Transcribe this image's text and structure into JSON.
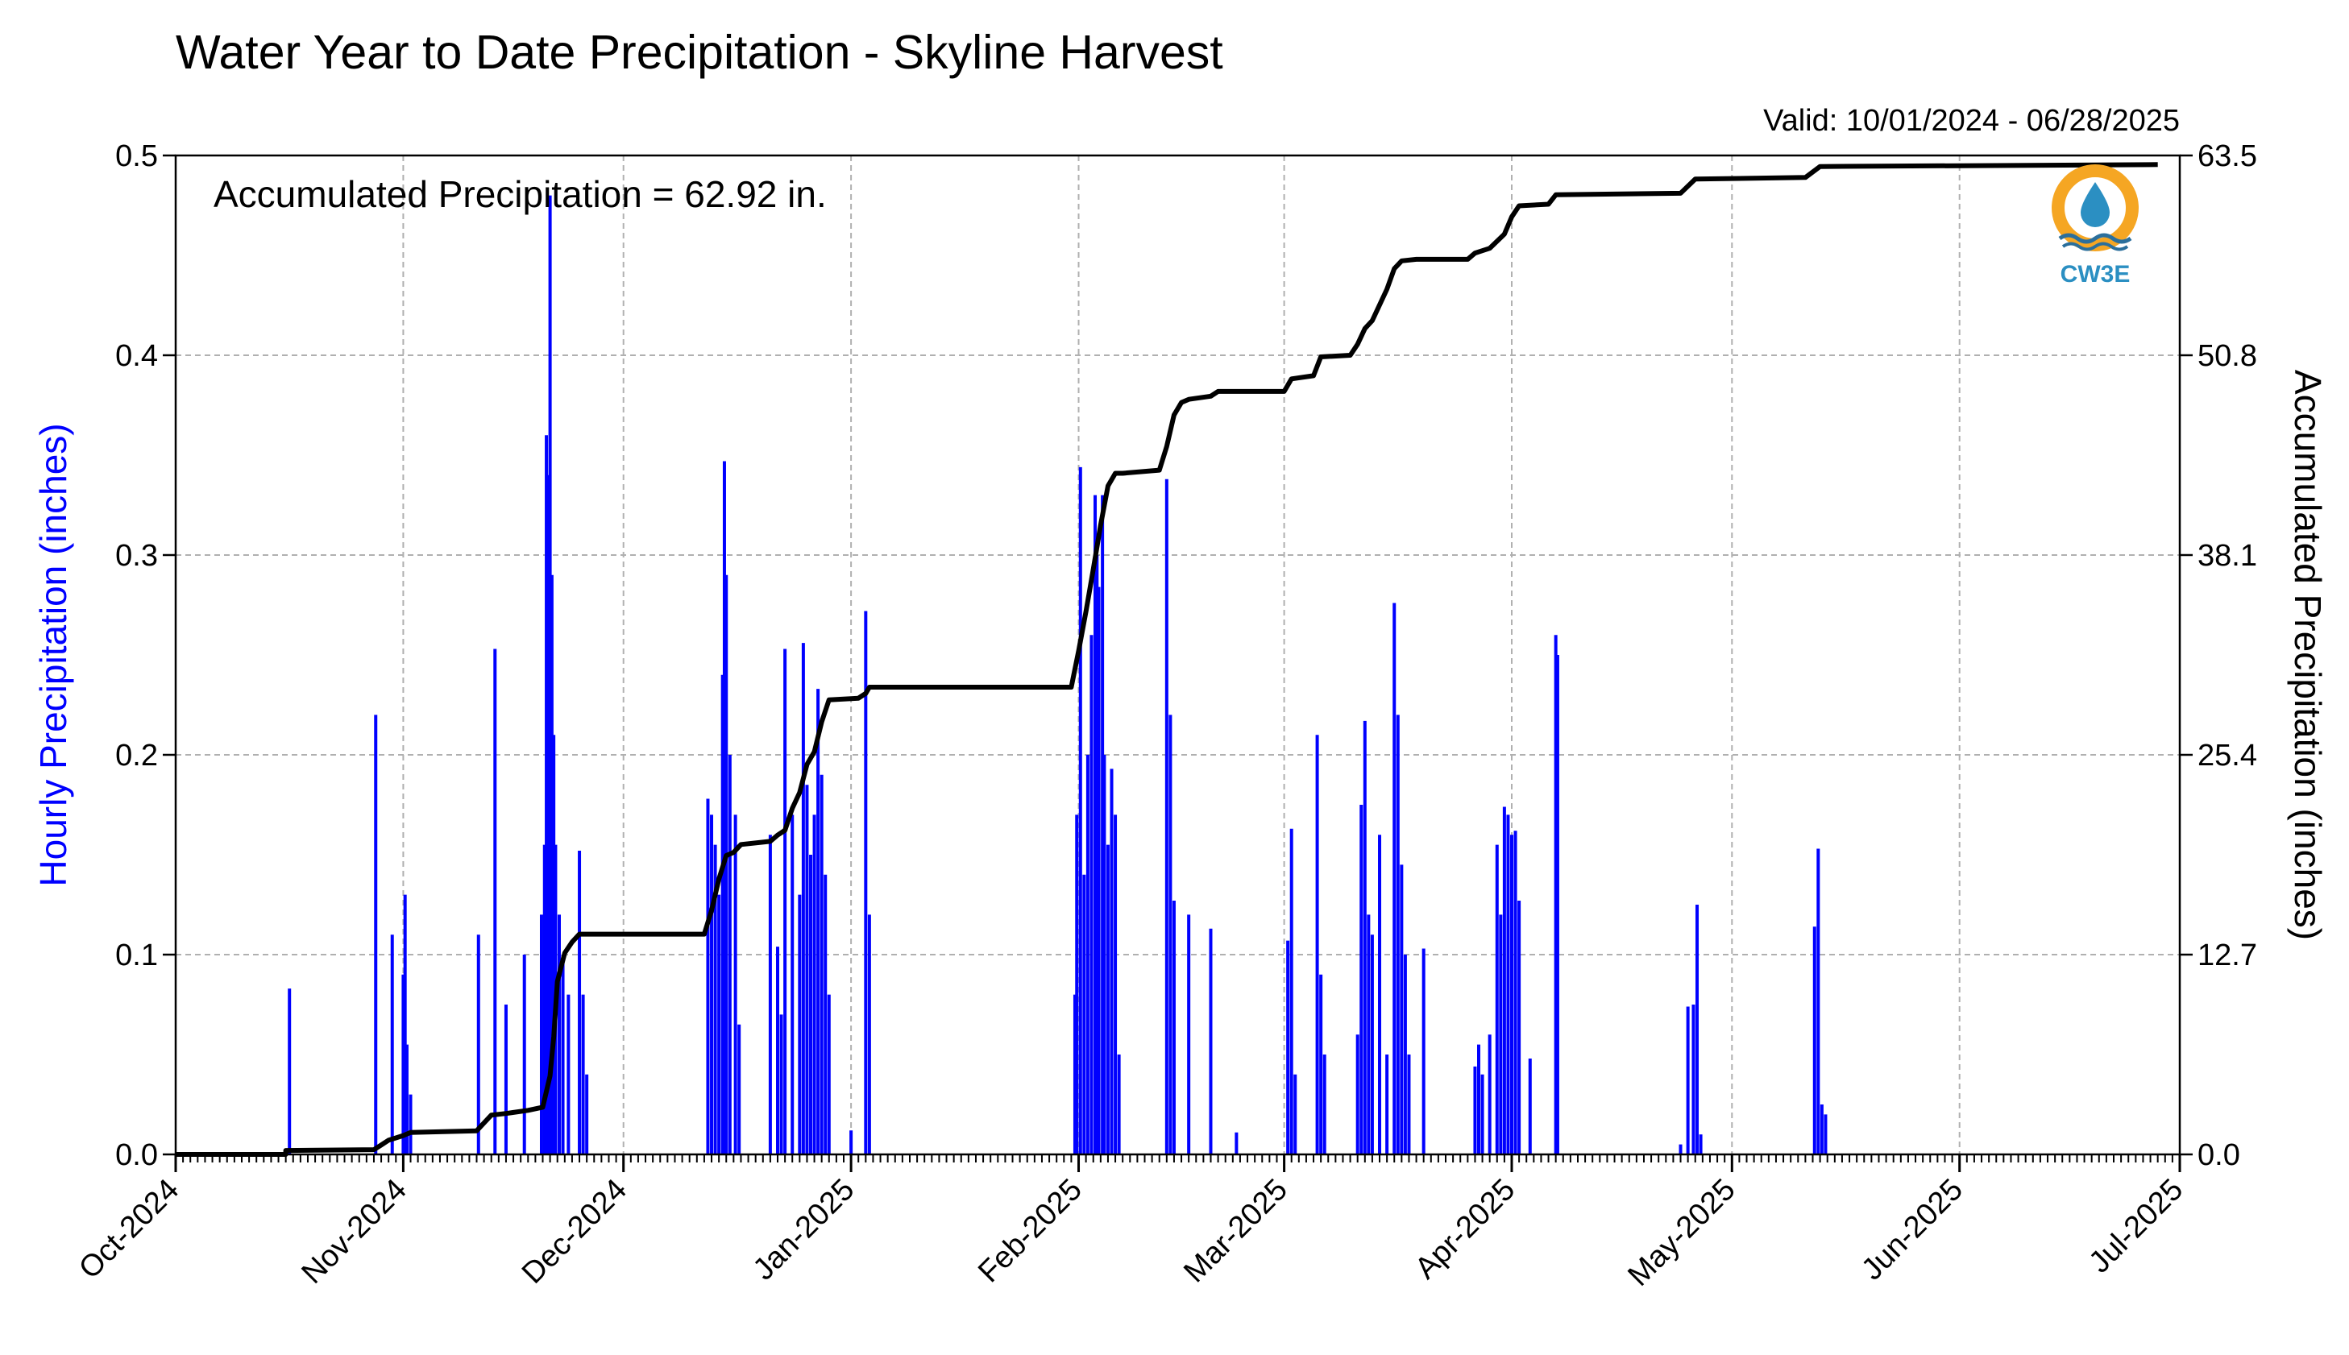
{
  "chart_data": {
    "type": "bar",
    "title": "Water Year to Date Precipitation - Skyline Harvest",
    "valid_text": "Valid: 10/01/2024 - 06/28/2025",
    "annotation": "Accumulated Precipitation = 62.92 in.",
    "ylabel": "Hourly Precipitation (inches)",
    "y2label": "Accumulated Precipitation (inches)",
    "xlim": [
      "2024-10-01",
      "2025-07-01"
    ],
    "ylim": [
      0,
      0.5
    ],
    "y2lim": [
      0,
      63.5
    ],
    "y_ticks": [
      "0.0",
      "0.1",
      "0.2",
      "0.3",
      "0.4",
      "0.5"
    ],
    "y2_ticks": [
      "0.0",
      "12.7",
      "25.4",
      "38.1",
      "50.8",
      "63.5"
    ],
    "x_ticks": [
      {
        "date": "2024-10-01",
        "label": "Oct-2024"
      },
      {
        "date": "2024-11-01",
        "label": "Nov-2024"
      },
      {
        "date": "2024-12-01",
        "label": "Dec-2024"
      },
      {
        "date": "2025-01-01",
        "label": "Jan-2025"
      },
      {
        "date": "2025-02-01",
        "label": "Feb-2025"
      },
      {
        "date": "2025-03-01",
        "label": "Mar-2025"
      },
      {
        "date": "2025-04-01",
        "label": "Apr-2025"
      },
      {
        "date": "2025-05-01",
        "label": "May-2025"
      },
      {
        "date": "2025-06-01",
        "label": "Jun-2025"
      },
      {
        "date": "2025-07-01",
        "label": "Jul-2025"
      }
    ],
    "grid": true,
    "series": [
      {
        "name": "Hourly Precipitation (inches)",
        "axis": "left",
        "color": "#0000ff",
        "points": [
          [
            "2024-10-16T12",
            0.083
          ],
          [
            "2024-10-28T06",
            0.22
          ],
          [
            "2024-10-30T12",
            0.11
          ],
          [
            "2024-11-01T00",
            0.09
          ],
          [
            "2024-11-01T06",
            0.13
          ],
          [
            "2024-11-01T12",
            0.055
          ],
          [
            "2024-11-02T00",
            0.03
          ],
          [
            "2024-11-11T06",
            0.11
          ],
          [
            "2024-11-13T12",
            0.253
          ],
          [
            "2024-11-15T00",
            0.075
          ],
          [
            "2024-11-17T12",
            0.1
          ],
          [
            "2024-11-19T20",
            0.12
          ],
          [
            "2024-11-20T06",
            0.155
          ],
          [
            "2024-11-20T12",
            0.36
          ],
          [
            "2024-11-20T18",
            0.34
          ],
          [
            "2024-11-21T00",
            0.48
          ],
          [
            "2024-11-21T06",
            0.29
          ],
          [
            "2024-11-21T12",
            0.21
          ],
          [
            "2024-11-21T18",
            0.155
          ],
          [
            "2024-11-22T06",
            0.12
          ],
          [
            "2024-11-22T18",
            0.1
          ],
          [
            "2024-11-23T12",
            0.08
          ],
          [
            "2024-11-25T00",
            0.152
          ],
          [
            "2024-11-25T12",
            0.08
          ],
          [
            "2024-11-26T00",
            0.04
          ],
          [
            "2024-12-12T12",
            0.178
          ],
          [
            "2024-12-13T00",
            0.17
          ],
          [
            "2024-12-13T12",
            0.155
          ],
          [
            "2024-12-14T00",
            0.13
          ],
          [
            "2024-12-14T12",
            0.24
          ],
          [
            "2024-12-14T18",
            0.347
          ],
          [
            "2024-12-15T00",
            0.29
          ],
          [
            "2024-12-15T12",
            0.2
          ],
          [
            "2024-12-16T06",
            0.17
          ],
          [
            "2024-12-16T18",
            0.065
          ],
          [
            "2024-12-21T00",
            0.16
          ],
          [
            "2024-12-22T00",
            0.104
          ],
          [
            "2024-12-22T12",
            0.07
          ],
          [
            "2024-12-23T00",
            0.253
          ],
          [
            "2024-12-24T00",
            0.17
          ],
          [
            "2024-12-25T00",
            0.13
          ],
          [
            "2024-12-25T12",
            0.256
          ],
          [
            "2024-12-26T00",
            0.185
          ],
          [
            "2024-12-26T12",
            0.15
          ],
          [
            "2024-12-27T00",
            0.17
          ],
          [
            "2024-12-27T12",
            0.233
          ],
          [
            "2024-12-28T00",
            0.19
          ],
          [
            "2024-12-28T12",
            0.14
          ],
          [
            "2024-12-29T00",
            0.08
          ],
          [
            "2025-01-01T00",
            0.012
          ],
          [
            "2025-01-03T00",
            0.272
          ],
          [
            "2025-01-03T12",
            0.12
          ],
          [
            "2025-01-31T12",
            0.08
          ],
          [
            "2025-01-31T18",
            0.17
          ],
          [
            "2025-02-01T06",
            0.344
          ],
          [
            "2025-02-01T18",
            0.14
          ],
          [
            "2025-02-02T06",
            0.2
          ],
          [
            "2025-02-02T18",
            0.26
          ],
          [
            "2025-02-03T06",
            0.33
          ],
          [
            "2025-02-03T12",
            0.3
          ],
          [
            "2025-02-03T18",
            0.284
          ],
          [
            "2025-02-04T06",
            0.33
          ],
          [
            "2025-02-04T12",
            0.2
          ],
          [
            "2025-02-05T00",
            0.155
          ],
          [
            "2025-02-05T12",
            0.193
          ],
          [
            "2025-02-06T00",
            0.17
          ],
          [
            "2025-02-06T12",
            0.05
          ],
          [
            "2025-02-13T00",
            0.338
          ],
          [
            "2025-02-13T12",
            0.22
          ],
          [
            "2025-02-14T00",
            0.127
          ],
          [
            "2025-02-16T00",
            0.12
          ],
          [
            "2025-02-19T00",
            0.113
          ],
          [
            "2025-02-22T12",
            0.011
          ],
          [
            "2025-03-01T12",
            0.107
          ],
          [
            "2025-03-02T00",
            0.163
          ],
          [
            "2025-03-02T12",
            0.04
          ],
          [
            "2025-03-05T12",
            0.21
          ],
          [
            "2025-03-06T00",
            0.09
          ],
          [
            "2025-03-06T12",
            0.05
          ],
          [
            "2025-03-11T00",
            0.06
          ],
          [
            "2025-03-11T12",
            0.175
          ],
          [
            "2025-03-12T00",
            0.217
          ],
          [
            "2025-03-12T12",
            0.12
          ],
          [
            "2025-03-13T00",
            0.11
          ],
          [
            "2025-03-14T00",
            0.16
          ],
          [
            "2025-03-15T00",
            0.05
          ],
          [
            "2025-03-16T00",
            0.276
          ],
          [
            "2025-03-16T12",
            0.22
          ],
          [
            "2025-03-17T00",
            0.145
          ],
          [
            "2025-03-17T12",
            0.1
          ],
          [
            "2025-03-18T00",
            0.05
          ],
          [
            "2025-03-20T00",
            0.103
          ],
          [
            "2025-03-27T00",
            0.044
          ],
          [
            "2025-03-27T12",
            0.055
          ],
          [
            "2025-03-28T00",
            0.04
          ],
          [
            "2025-03-29T00",
            0.06
          ],
          [
            "2025-03-30T00",
            0.155
          ],
          [
            "2025-03-30T12",
            0.12
          ],
          [
            "2025-03-31T00",
            0.174
          ],
          [
            "2025-03-31T12",
            0.17
          ],
          [
            "2025-04-01T00",
            0.16
          ],
          [
            "2025-04-01T12",
            0.162
          ],
          [
            "2025-04-02T00",
            0.127
          ],
          [
            "2025-04-03T12",
            0.048
          ],
          [
            "2025-04-07T00",
            0.26
          ],
          [
            "2025-04-07T06",
            0.25
          ],
          [
            "2025-04-24T00",
            0.005
          ],
          [
            "2025-04-25T00",
            0.074
          ],
          [
            "2025-04-25T18",
            0.075
          ],
          [
            "2025-04-26T06",
            0.125
          ],
          [
            "2025-04-26T18",
            0.01
          ],
          [
            "2025-05-12T06",
            0.114
          ],
          [
            "2025-05-12T18",
            0.153
          ],
          [
            "2025-05-13T06",
            0.025
          ],
          [
            "2025-05-13T18",
            0.02
          ]
        ]
      },
      {
        "name": "Accumulated Precipitation (inches)",
        "axis": "right",
        "color": "#000000",
        "points": [
          [
            "2024-10-01",
            0.0
          ],
          [
            "2024-10-16",
            0.0
          ],
          [
            "2024-10-16",
            0.25
          ],
          [
            "2024-10-28",
            0.3
          ],
          [
            "2024-10-29",
            0.6
          ],
          [
            "2024-10-30",
            0.9
          ],
          [
            "2024-11-01",
            1.2
          ],
          [
            "2024-11-02",
            1.4
          ],
          [
            "2024-11-11",
            1.5
          ],
          [
            "2024-11-13",
            2.5
          ],
          [
            "2024-11-15",
            2.6
          ],
          [
            "2024-11-18",
            2.8
          ],
          [
            "2024-11-20",
            3.0
          ],
          [
            "2024-11-21",
            5.0
          ],
          [
            "2024-11-21T12",
            7.5
          ],
          [
            "2024-11-22",
            11.0
          ],
          [
            "2024-11-23",
            12.8
          ],
          [
            "2024-11-24",
            13.5
          ],
          [
            "2024-11-25",
            14.0
          ],
          [
            "2024-11-26",
            14.0
          ],
          [
            "2024-12-12",
            14.0
          ],
          [
            "2024-12-13",
            15.5
          ],
          [
            "2024-12-14",
            17.5
          ],
          [
            "2024-12-15",
            19.0
          ],
          [
            "2024-12-16",
            19.2
          ],
          [
            "2024-12-17",
            19.7
          ],
          [
            "2024-12-21",
            19.9
          ],
          [
            "2024-12-22",
            20.3
          ],
          [
            "2024-12-23",
            20.6
          ],
          [
            "2024-12-24",
            22.0
          ],
          [
            "2024-12-25",
            23.0
          ],
          [
            "2024-12-26",
            24.8
          ],
          [
            "2024-12-27",
            25.6
          ],
          [
            "2024-12-28",
            27.5
          ],
          [
            "2024-12-29",
            28.9
          ],
          [
            "2025-01-02",
            29.0
          ],
          [
            "2025-01-03",
            29.3
          ],
          [
            "2025-01-03T12",
            29.7
          ],
          [
            "2025-01-31",
            29.7
          ],
          [
            "2025-02-01",
            32.0
          ],
          [
            "2025-02-02",
            34.5
          ],
          [
            "2025-02-03",
            37.2
          ],
          [
            "2025-02-04",
            40.0
          ],
          [
            "2025-02-05",
            42.5
          ],
          [
            "2025-02-06",
            43.3
          ],
          [
            "2025-02-07",
            43.3
          ],
          [
            "2025-02-12",
            43.5
          ],
          [
            "2025-02-13",
            45.0
          ],
          [
            "2025-02-14",
            47.0
          ],
          [
            "2025-02-15",
            47.8
          ],
          [
            "2025-02-16",
            48.0
          ],
          [
            "2025-02-19",
            48.2
          ],
          [
            "2025-02-20",
            48.5
          ],
          [
            "2025-03-01",
            48.5
          ],
          [
            "2025-03-02",
            49.3
          ],
          [
            "2025-03-05",
            49.5
          ],
          [
            "2025-03-06",
            50.7
          ],
          [
            "2025-03-10",
            50.8
          ],
          [
            "2025-03-11",
            51.5
          ],
          [
            "2025-03-12",
            52.5
          ],
          [
            "2025-03-13",
            53.0
          ],
          [
            "2025-03-14",
            54.0
          ],
          [
            "2025-03-15",
            55.0
          ],
          [
            "2025-03-16",
            56.3
          ],
          [
            "2025-03-17",
            56.8
          ],
          [
            "2025-03-19",
            56.9
          ],
          [
            "2025-03-26",
            56.9
          ],
          [
            "2025-03-27",
            57.3
          ],
          [
            "2025-03-29",
            57.6
          ],
          [
            "2025-03-31",
            58.5
          ],
          [
            "2025-04-01",
            59.6
          ],
          [
            "2025-04-02",
            60.3
          ],
          [
            "2025-04-06",
            60.4
          ],
          [
            "2025-04-07",
            61.0
          ],
          [
            "2025-04-24",
            61.1
          ],
          [
            "2025-04-26",
            62.0
          ],
          [
            "2025-05-11",
            62.1
          ],
          [
            "2025-05-13",
            62.8
          ],
          [
            "2025-06-28",
            62.92
          ]
        ]
      }
    ]
  },
  "logo": {
    "text": "CW3E",
    "colors": {
      "ring": "#f5a623",
      "drop": "#2b8fc2",
      "waves": "#2b6f9c",
      "text": "#2b8fc2"
    }
  }
}
